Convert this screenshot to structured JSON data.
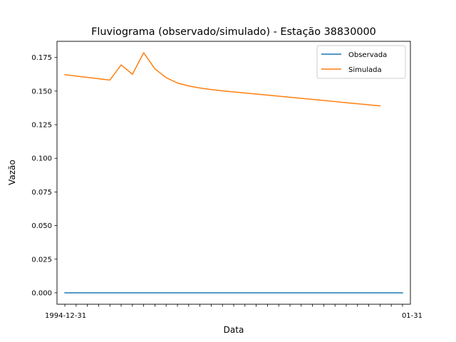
{
  "chart_data": {
    "type": "line",
    "title": "Fluviograma (observado/simulado) - Estação 38830000",
    "xlabel": "Data",
    "ylabel": "Vazão",
    "ylim": [
      -0.0085,
      0.187
    ],
    "xlim": [
      -0.7,
      30.7
    ],
    "grid": false,
    "legend_position": "top-right",
    "y_ticks": [
      0.0,
      0.025,
      0.05,
      0.075,
      0.1,
      0.125,
      0.15,
      0.175
    ],
    "y_tick_labels": [
      "0.000",
      "0.025",
      "0.050",
      "0.075",
      "0.100",
      "0.125",
      "0.150",
      "0.175"
    ],
    "x_tick_labels": [
      "1994-12-31",
      "",
      "",
      "",
      "",
      "",
      "",
      "",
      "",
      "",
      "",
      "",
      "",
      "",
      "",
      "",
      "",
      "",
      "",
      "",
      "",
      "",
      "",
      "",
      "",
      "",
      "",
      "",
      "",
      "",
      "01-31"
    ],
    "series": [
      {
        "name": "Observada",
        "color": "#1f77b4",
        "values": [
          0,
          0,
          0,
          0,
          0,
          0,
          0,
          0,
          0,
          0,
          0,
          0,
          0,
          0,
          0,
          0,
          0,
          0,
          0,
          0,
          0,
          0,
          0,
          0,
          0,
          0,
          0,
          0,
          0,
          0,
          0
        ]
      },
      {
        "name": "Simulada",
        "color": "#ff7f0e",
        "values": [
          0.1622,
          0.1612,
          0.1602,
          0.1592,
          0.1582,
          0.1695,
          0.1625,
          0.1785,
          0.1665,
          0.16,
          0.156,
          0.1538,
          0.1523,
          0.1511,
          0.1502,
          0.1494,
          0.1486,
          0.1478,
          0.147,
          0.1462,
          0.1454,
          0.1446,
          0.1438,
          0.143,
          0.1422,
          0.1414,
          0.1406,
          0.1398,
          0.139,
          null,
          null
        ]
      }
    ]
  }
}
